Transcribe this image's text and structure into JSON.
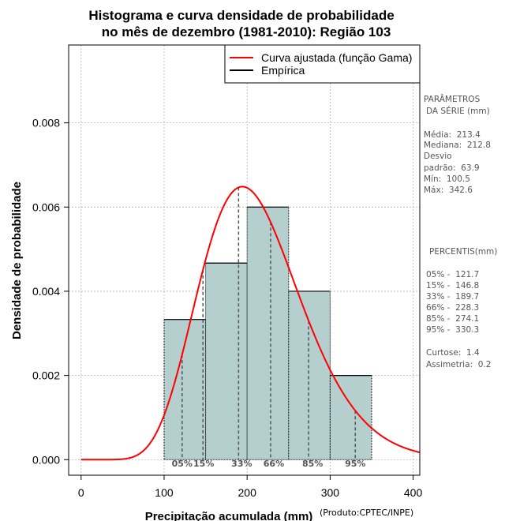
{
  "chart_data": {
    "type": "histogram",
    "title_line1": "Histograma e curva densidade de probabilidade",
    "title_line2": "no mês de dezembro (1981-2010): Região 103",
    "xlabel": "Precipitação acumulada (mm)",
    "ylabel": "Densidade de probabilidade",
    "credit": "(Produto:CPTEC/INPE)",
    "xlim": [
      -15,
      408
    ],
    "ylim": [
      -0.00037,
      0.00985
    ],
    "x_ticks": [
      0,
      100,
      200,
      300,
      400
    ],
    "y_ticks": [
      0.0,
      0.002,
      0.004,
      0.006,
      0.008
    ],
    "y_tick_labels": [
      "0.000",
      "0.002",
      "0.004",
      "0.006",
      "0.008"
    ],
    "grid": true,
    "bins": [
      {
        "x0": 100,
        "x1": 150,
        "density": 0.00333
      },
      {
        "x0": 150,
        "x1": 200,
        "density": 0.00467
      },
      {
        "x0": 200,
        "x1": 250,
        "density": 0.006
      },
      {
        "x0": 250,
        "x1": 300,
        "density": 0.004
      },
      {
        "x0": 300,
        "x1": 350,
        "density": 0.002
      }
    ],
    "gamma_fit": {
      "shape": 11.14,
      "scale": 19.16,
      "x_from": 0,
      "x_to": 408
    },
    "percentile_markers": [
      {
        "label": "05%",
        "x": 121.7
      },
      {
        "label": "15%",
        "x": 146.8
      },
      {
        "label": "33%",
        "x": 189.7
      },
      {
        "label": "66%",
        "x": 228.3
      },
      {
        "label": "85%",
        "x": 274.1
      },
      {
        "label": "95%",
        "x": 330.3
      }
    ],
    "legend": {
      "position": "top-right",
      "entries": [
        {
          "label": "Curva ajustada (função Gama)",
          "color": "#ff0000"
        },
        {
          "label": "Empírica",
          "color": "#000000"
        }
      ]
    },
    "colors": {
      "bar_fill": "#b5cece",
      "curve": "#ff0000",
      "grid": "#b4b4b4",
      "marker": "#555555"
    }
  },
  "side_panel": {
    "params_heading_1": "PARÂMETROS",
    "params_heading_2": "DA SÉRIE (mm)",
    "media": "Média:  213.4",
    "mediana": "Mediana:  212.8",
    "desvio_1": "Desvio",
    "desvio_2": "padrão:  63.9",
    "min": "Mín:  100.5",
    "max": "Máx:  342.6",
    "percentis_heading": "PERCENTIS(mm)",
    "p05": "05% -  121.7",
    "p15": "15% -  146.8",
    "p33": "33% -  189.7",
    "p66": "66% -  228.3",
    "p85": "85% -  274.1",
    "p95": "95% -  330.3",
    "curtose": "Curtose:  1.4",
    "assimetria": "Assimetria:  0.2"
  }
}
